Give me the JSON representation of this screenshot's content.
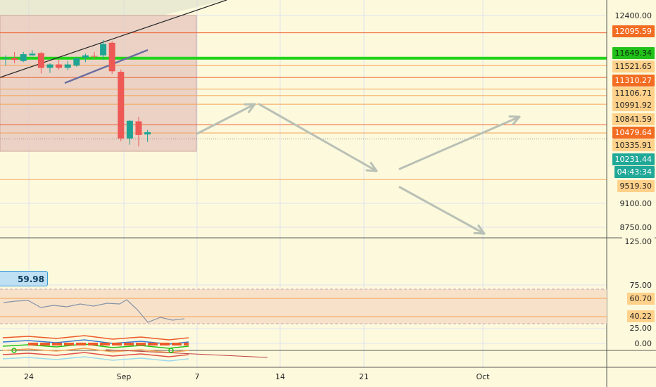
{
  "price_scale": {
    "ticks": [
      "12400.00",
      "9100.00",
      "8750.00"
    ],
    "labels": [
      {
        "text": "12095.59",
        "bg": "#f26c21",
        "fg": "#ffffff"
      },
      {
        "text": "11649.34",
        "bg": "#22c11a",
        "fg": "#0a2a0a"
      },
      {
        "text": "11521.65",
        "bg": "#ffd18a",
        "fg": "#222222"
      },
      {
        "text": "11310.27",
        "bg": "#f26c21",
        "fg": "#ffffff"
      },
      {
        "text": "11106.71",
        "bg": "#ffd18a",
        "fg": "#222222"
      },
      {
        "text": "10991.92",
        "bg": "#ffd18a",
        "fg": "#222222"
      },
      {
        "text": "10841.59",
        "bg": "#ffd18a",
        "fg": "#222222"
      },
      {
        "text": "10479.64",
        "bg": "#f26c21",
        "fg": "#ffffff"
      },
      {
        "text": "10335.91",
        "bg": "#ffd18a",
        "fg": "#222222"
      },
      {
        "text": "10231.44",
        "bg": "#20a898",
        "fg": "#ffffff"
      },
      {
        "text": "04:43:34",
        "bg": "#20a898",
        "fg": "#ffffff"
      },
      {
        "text": "9519.30",
        "bg": "#ffd18a",
        "fg": "#222222"
      }
    ]
  },
  "indicator": {
    "current_value": "59.98",
    "scale_ticks": [
      "125.00",
      "75.00",
      "25.00"
    ],
    "labels": [
      {
        "text": "60.70",
        "bg": "#ffd18a",
        "fg": "#222222"
      },
      {
        "text": "40.22",
        "bg": "#ffd18a",
        "fg": "#222222"
      }
    ]
  },
  "bottom_pane": {
    "scale_ticks": [
      "0.00"
    ]
  },
  "time_axis": [
    "24",
    "Sep",
    "7",
    "14",
    "21",
    "Oct"
  ],
  "colors": {
    "background": "#fdf9dc",
    "bull": "#1fa494",
    "bear": "#ee5855",
    "hline_orange": "#f5a356",
    "hline_red": "#ee5a2a",
    "hline_green": "#22d41b",
    "projection_arrow": "#b9c1b6",
    "rsi_band": "#f6dfc6"
  }
}
